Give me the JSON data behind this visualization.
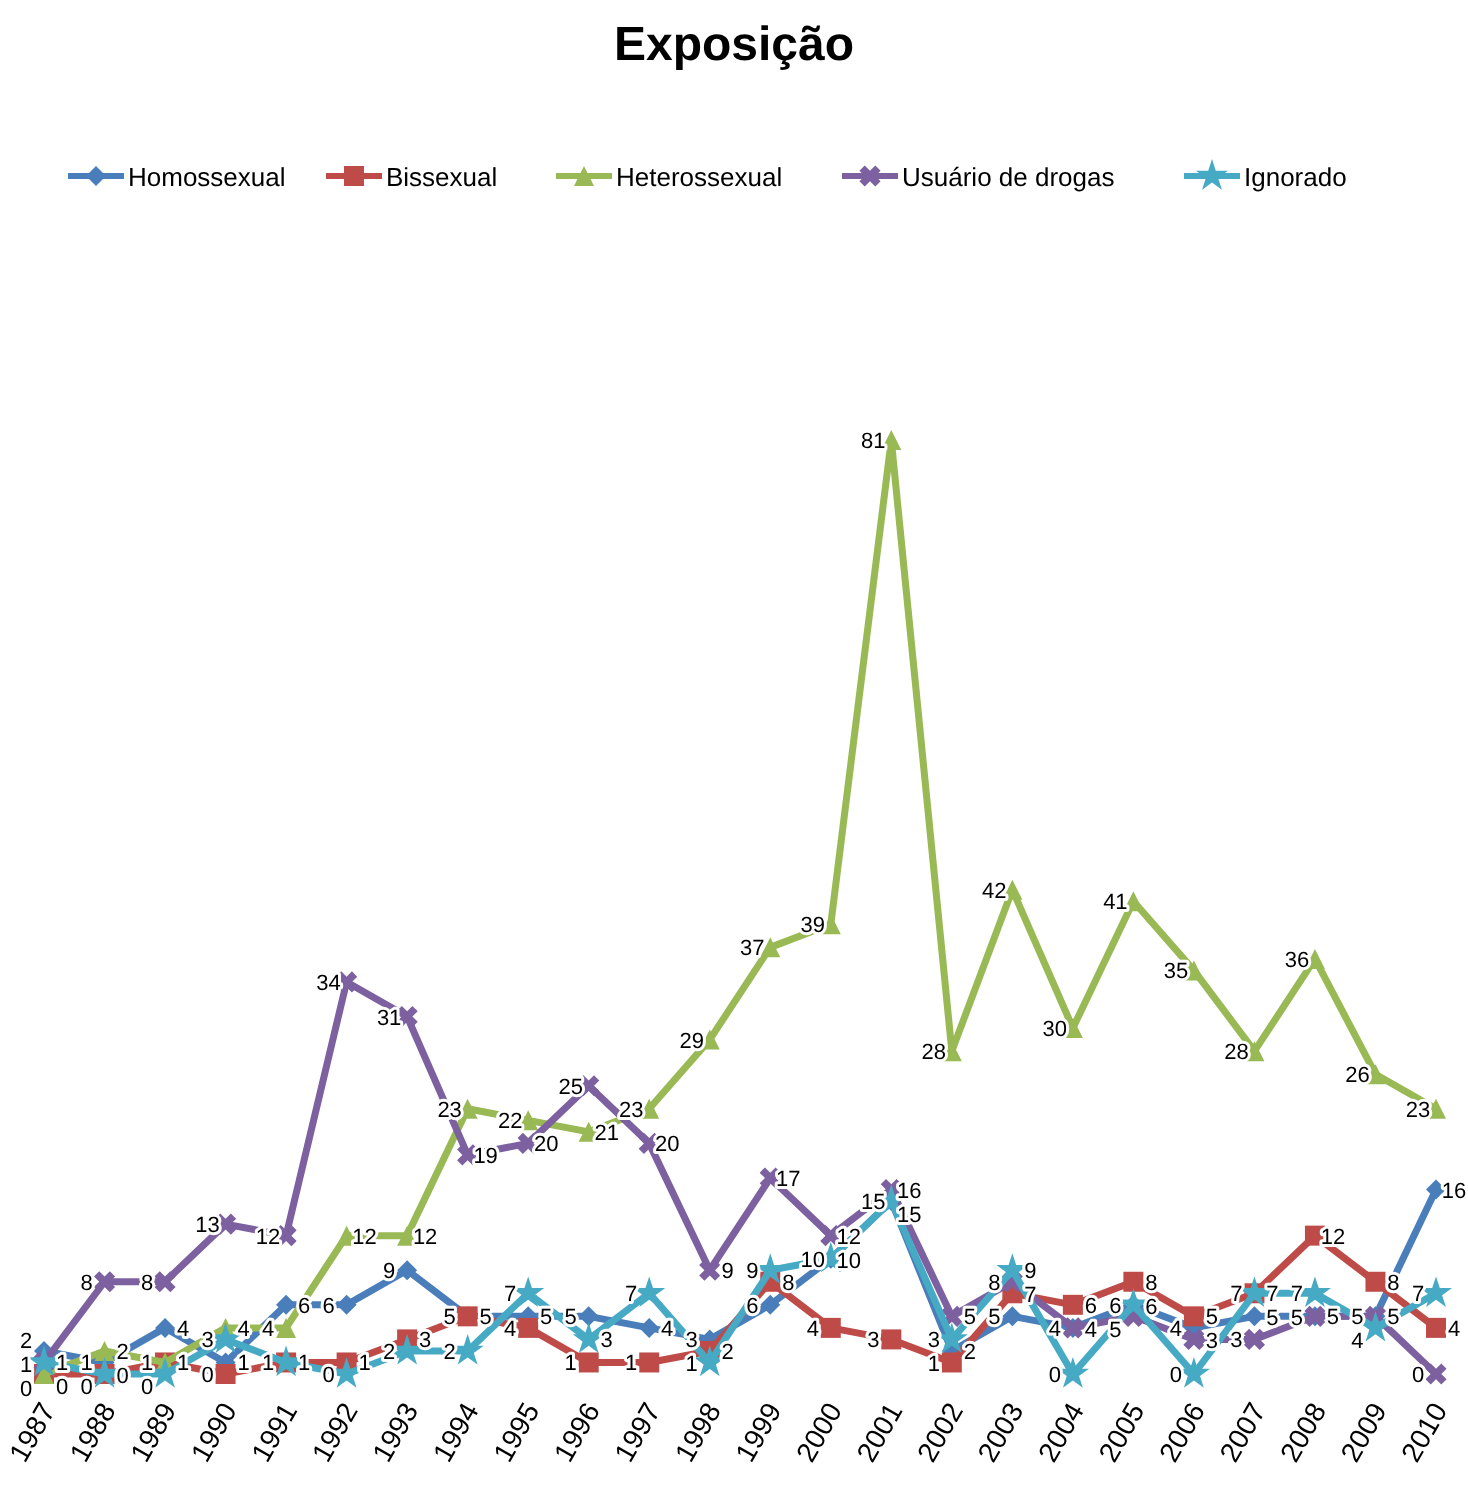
{
  "chart_data": {
    "type": "line",
    "title": "Exposição",
    "categories": [
      "1987",
      "1988",
      "1989",
      "1990",
      "1991",
      "1992",
      "1993",
      "1994",
      "1995",
      "1996",
      "1997",
      "1998",
      "1999",
      "2000",
      "2001",
      "2002",
      "2003",
      "2004",
      "2005",
      "2006",
      "2007",
      "2008",
      "2009",
      "2010"
    ],
    "series": [
      {
        "name": "Homossexual",
        "color": "#4a7ebb",
        "marker": "diamond",
        "values": [
          2,
          1,
          4,
          1,
          6,
          6,
          9,
          5,
          5,
          5,
          4,
          3,
          6,
          10,
          15,
          2,
          5,
          4,
          6,
          4,
          5,
          5,
          5,
          16
        ]
      },
      {
        "name": "Bissexual",
        "color": "#be4b48",
        "marker": "square",
        "values": [
          0,
          0,
          1,
          0,
          1,
          1,
          3,
          5,
          4,
          1,
          1,
          2,
          8,
          4,
          3,
          1,
          7,
          6,
          8,
          5,
          7,
          12,
          8,
          4
        ]
      },
      {
        "name": "Heterossexual",
        "color": "#98b954",
        "marker": "triangle",
        "values": [
          0,
          2,
          1,
          4,
          4,
          12,
          12,
          23,
          22,
          21,
          23,
          29,
          37,
          39,
          81,
          28,
          42,
          30,
          41,
          35,
          28,
          36,
          26,
          23
        ]
      },
      {
        "name": "Usuário de drogas",
        "color": "#7d60a0",
        "marker": "cross",
        "values": [
          1,
          8,
          8,
          13,
          12,
          34,
          31,
          19,
          20,
          25,
          20,
          9,
          17,
          12,
          16,
          5,
          8,
          4,
          5,
          3,
          3,
          5,
          5,
          0
        ]
      },
      {
        "name": "Ignorado",
        "color": "#46aac5",
        "marker": "star",
        "values": [
          1,
          0,
          0,
          3,
          1,
          0,
          2,
          2,
          7,
          3,
          7,
          1,
          9,
          10,
          15,
          3,
          9,
          0,
          6,
          0,
          7,
          7,
          4,
          7
        ]
      }
    ],
    "data_labels": true,
    "legend": "top",
    "grid": false
  }
}
